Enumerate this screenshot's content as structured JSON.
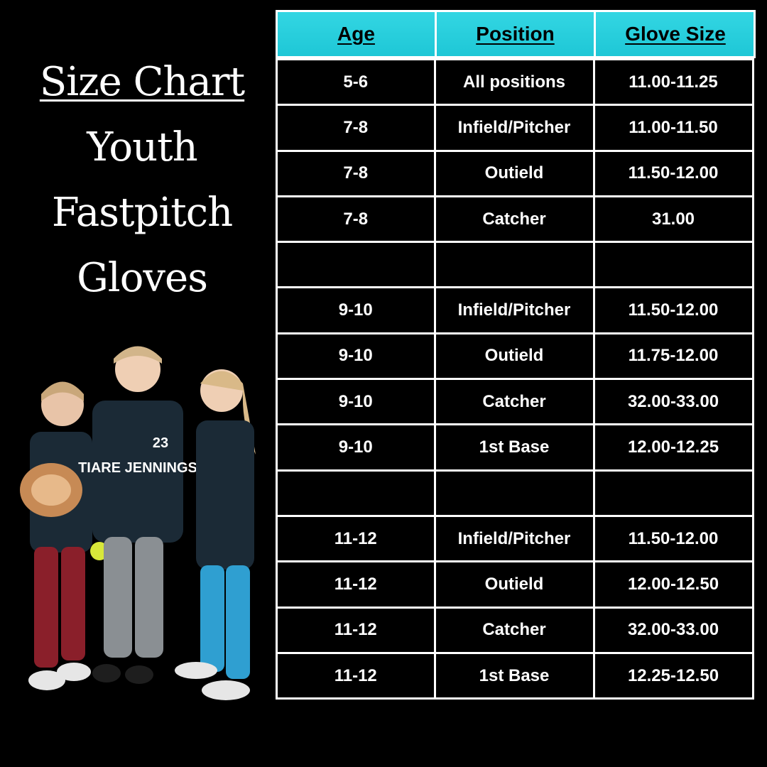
{
  "title": {
    "line1": "Size Chart",
    "line2": "Youth",
    "line3": "Fastpitch",
    "line4": "Gloves"
  },
  "table": {
    "headers": [
      "Age",
      "Position",
      "Glove Size"
    ],
    "rows": [
      [
        "5-6",
        "All positions",
        "11.00-11.25"
      ],
      [
        "7-8",
        "Infield/Pitcher",
        "11.00-11.50"
      ],
      [
        "7-8",
        "Outield",
        "11.50-12.00"
      ],
      [
        "7-8",
        "Catcher",
        "31.00"
      ],
      [
        "",
        "",
        ""
      ],
      [
        "9-10",
        "Infield/Pitcher",
        "11.50-12.00"
      ],
      [
        "9-10",
        "Outield",
        "11.75-12.00"
      ],
      [
        "9-10",
        "Catcher",
        "32.00-33.00"
      ],
      [
        "9-10",
        "1st Base",
        "12.00-12.25"
      ],
      [
        "",
        "",
        ""
      ],
      [
        "11-12",
        "Infield/Pitcher",
        "11.50-12.00"
      ],
      [
        "11-12",
        "Outield",
        "12.00-12.50"
      ],
      [
        "11-12",
        "Catcher",
        "32.00-33.00"
      ],
      [
        "11-12",
        "1st Base",
        "12.25-12.50"
      ]
    ]
  },
  "photo": {
    "shirt_text": "TIARE JENNINGS",
    "shirt_number": "23"
  },
  "colors": {
    "background": "#000000",
    "header_bg": "#2fd4e0",
    "text": "#ffffff",
    "border": "#ffffff"
  }
}
